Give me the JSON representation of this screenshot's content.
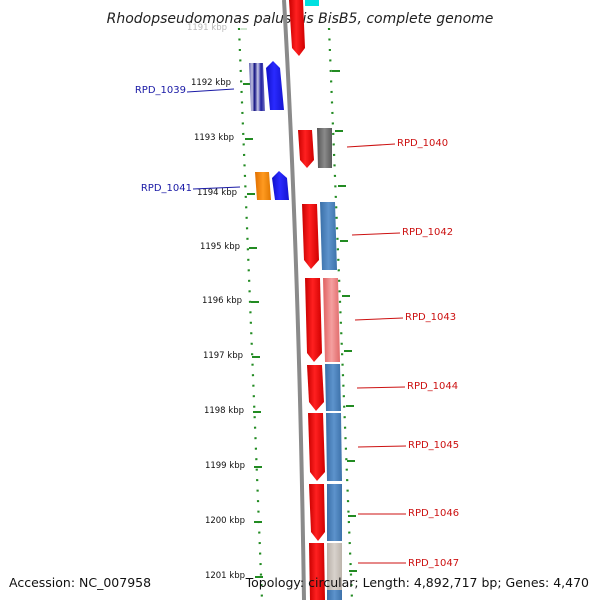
{
  "header": {
    "title": "Rhodopseudomonas palustris BisB5, complete genome"
  },
  "footer": {
    "accession": "Accession: NC_007958",
    "topology": "Topology: circular; Length: 4,892,717 bp; Genes: 4,470"
  },
  "ruler": {
    "labels": [
      "1191 kbp",
      "1192 kbp",
      "1193 kbp",
      "1194 kbp",
      "1195 kbp",
      "1196 kbp",
      "1197 kbp",
      "1198 kbp",
      "1199 kbp",
      "1200 kbp",
      "1201 kbp"
    ]
  },
  "genes": {
    "left": [
      {
        "label": "RPD_1039",
        "color": "#1a1aa6"
      },
      {
        "label": "RPD_1041",
        "color": "#1a1aa6"
      }
    ],
    "right": [
      {
        "label": "RPD_1040",
        "color": "#cc1111"
      },
      {
        "label": "RPD_1042",
        "color": "#cc1111"
      },
      {
        "label": "RPD_1043",
        "color": "#cc1111"
      },
      {
        "label": "RPD_1044",
        "color": "#cc1111"
      },
      {
        "label": "RPD_1045",
        "color": "#cc1111"
      },
      {
        "label": "RPD_1046",
        "color": "#cc1111"
      },
      {
        "label": "RPD_1047",
        "color": "#cc1111"
      }
    ]
  },
  "colors": {
    "forward_gene": "#ee1111",
    "reverse_gene": "#1a1aee",
    "backbone": "#888888",
    "ruler_ticks": "#228b22",
    "blue_feature": "#4a7fb8",
    "pink_feature": "#e88080",
    "gray_feature": "#777777",
    "orange_feature": "#ff8800"
  }
}
